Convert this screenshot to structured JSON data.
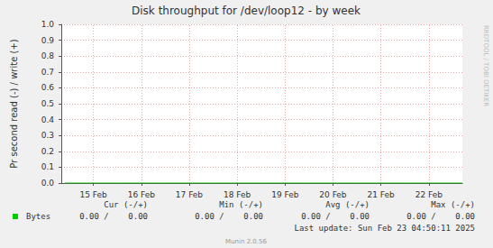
{
  "chart_data": {
    "type": "line",
    "title": "Disk throughput for /dev/loop12 - by week",
    "y_label": "Pr second read (-) / write (+)",
    "x": [
      14.9,
      16,
      17,
      18,
      19,
      20,
      21,
      22,
      23.2
    ],
    "series": [
      {
        "name": "Bytes",
        "color": "#00cc00",
        "values": [
          0,
          0,
          0,
          0,
          0,
          0,
          0,
          0,
          0
        ]
      }
    ],
    "xlim": [
      14.83,
      23.2
    ],
    "xticks": [
      {
        "value": 15.5,
        "label": "15 Feb"
      },
      {
        "value": 16.5,
        "label": "16 Feb"
      },
      {
        "value": 17.5,
        "label": "17 Feb"
      },
      {
        "value": 18.5,
        "label": "18 Feb"
      },
      {
        "value": 19.5,
        "label": "19 Feb"
      },
      {
        "value": 20.5,
        "label": "20 Feb"
      },
      {
        "value": 21.5,
        "label": "21 Feb"
      },
      {
        "value": 22.5,
        "label": "22 Feb"
      }
    ],
    "ylim": [
      0,
      1
    ],
    "yticks": [
      {
        "value": 0,
        "label": "0.0"
      },
      0.1,
      0.2,
      0.3,
      0.4,
      0.5,
      0.6,
      0.7,
      0.8,
      0.9,
      {
        "value": 1,
        "label": "1.0"
      }
    ],
    "grid": true,
    "legend_table": {
      "columns": [
        "Cur (-/+)",
        "Min (-/+)",
        "Avg (-/+)",
        "Max (-/+)"
      ],
      "rows": [
        {
          "name": "Bytes",
          "values": [
            "0.00 /    0.00",
            "0.00 /    0.00",
            "0.00 /    0.00",
            "0.00 /    0.00"
          ]
        }
      ]
    },
    "footer": "Last update: Sun Feb 23 04:50:11 2025",
    "credits": "Munin 2.0.56",
    "watermark": "RRDTOOL / TOBI OETIKER"
  }
}
